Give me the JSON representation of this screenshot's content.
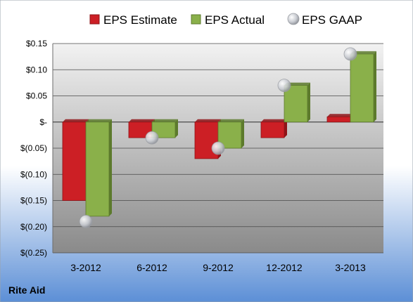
{
  "company": "Rite Aid",
  "colors": {
    "estimate": "#cc1f25",
    "estimate_side": "#8e1418",
    "actual": "#8ab04a",
    "actual_side": "#5c7a2c",
    "gaap": "#c9ccd2",
    "plot_top": "#f2f2f2",
    "plot_bottom": "#8a8a8a",
    "background_top": "#ffffff",
    "background_bottom": "#5c8fd6",
    "gridline": "#4a4a4a"
  },
  "chart_data": {
    "type": "bar",
    "categories": [
      "3-2012",
      "6-2012",
      "9-2012",
      "12-2012",
      "3-2013"
    ],
    "series": [
      {
        "name": "EPS Estimate",
        "kind": "bar",
        "values": [
          -0.15,
          -0.03,
          -0.07,
          -0.03,
          0.01
        ]
      },
      {
        "name": "EPS Actual",
        "kind": "bar",
        "values": [
          -0.18,
          -0.03,
          -0.05,
          0.07,
          0.13
        ]
      },
      {
        "name": "EPS GAAP",
        "kind": "marker",
        "values": [
          -0.19,
          -0.03,
          -0.05,
          0.07,
          0.13
        ]
      }
    ],
    "ylim": [
      -0.25,
      0.15
    ],
    "yticks": [
      0.15,
      0.1,
      0.05,
      0,
      -0.05,
      -0.1,
      -0.15,
      -0.2,
      -0.25
    ],
    "ytick_labels": [
      "$0.15",
      "$0.10",
      "$0.05",
      "$-",
      "$(0.05)",
      "$(0.10)",
      "$(0.15)",
      "$(0.20)",
      "$(0.25)"
    ],
    "legend_position": "top",
    "grid": true
  }
}
